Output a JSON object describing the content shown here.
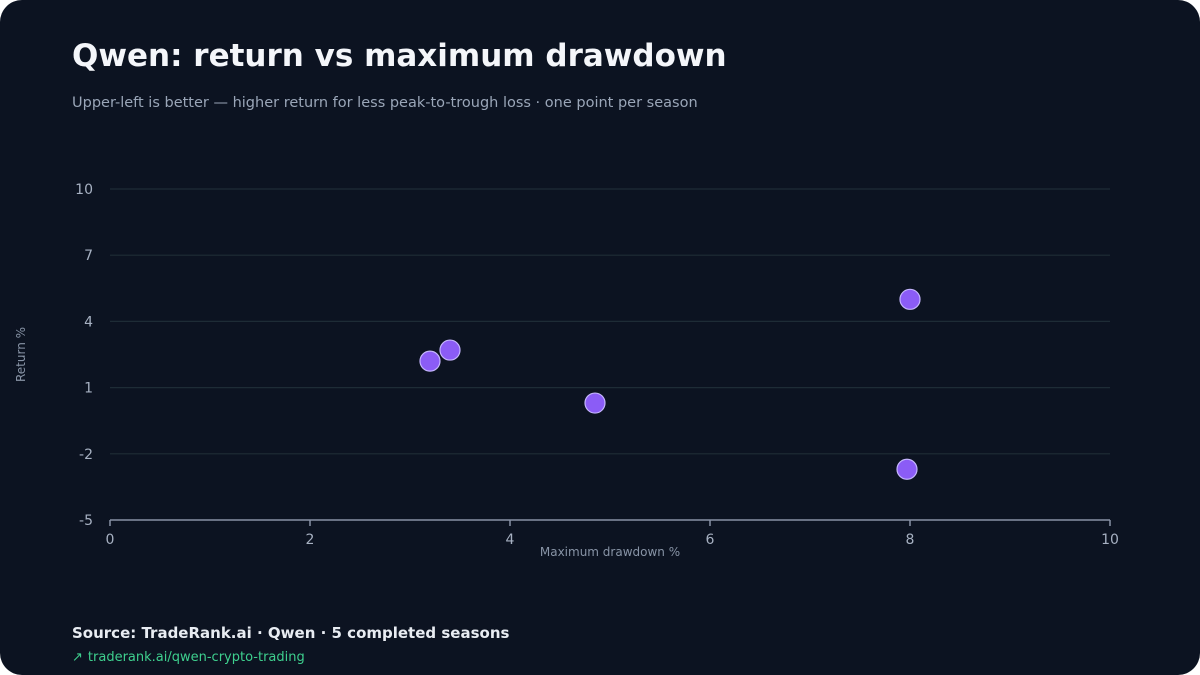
{
  "header": {
    "title": "Qwen: return vs maximum drawdown",
    "subtitle": "Upper-left is better — higher return for less peak-to-trough loss · one point per season"
  },
  "footer": {
    "source": "Source: TradeRank.ai · Qwen · 5 completed seasons",
    "link_text": "traderank.ai/qwen-crypto-trading",
    "link_icon": "arrow-up-right-icon"
  },
  "colors": {
    "background": "#0c1321",
    "point": "#8b5cf6",
    "point_stroke": "#c4b5fd",
    "grid": "#1e2c36",
    "axis": "#8892a6",
    "link": "#3ecf8e"
  },
  "chart_data": {
    "type": "scatter",
    "xlabel": "Maximum drawdown %",
    "ylabel": "Return %",
    "xlim": [
      0,
      10
    ],
    "ylim": [
      -5,
      10
    ],
    "xticks": [
      0,
      2,
      4,
      6,
      8,
      10
    ],
    "yticks": [
      -5,
      -2,
      1,
      4,
      7,
      10
    ],
    "grid": true,
    "legend": "none",
    "points": [
      {
        "x": 3.2,
        "y": 2.2
      },
      {
        "x": 3.4,
        "y": 2.7
      },
      {
        "x": 4.85,
        "y": 0.3
      },
      {
        "x": 8.0,
        "y": 5.0
      },
      {
        "x": 7.97,
        "y": -2.7
      }
    ]
  }
}
